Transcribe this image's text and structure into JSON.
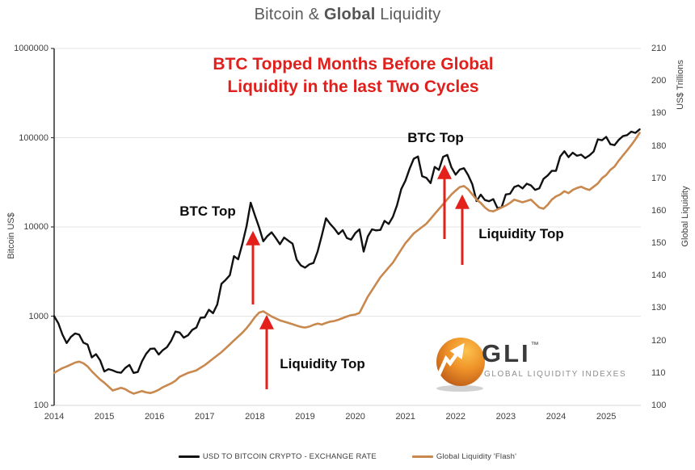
{
  "page_title": {
    "prefix": "Bitcoin & ",
    "bold": "Global",
    "suffix": " Liquidity"
  },
  "headline": {
    "line1": "BTC Topped Months Before Global",
    "line2": "Liquidity in the last Two Cycles",
    "color": "#e0201c"
  },
  "annotations": {
    "btc_top_1": "BTC Top",
    "liquidity_top_1": "Liquidity Top",
    "btc_top_2": "BTC Top",
    "liquidity_top_2": "Liquidity Top",
    "arrow_color": "#e3201b"
  },
  "logo": {
    "name": "GLI",
    "tm": "™",
    "subtitle": "GLOBAL LIQUIDITY INDEXES"
  },
  "legend": [
    {
      "label": "USD TO BITCOIN CRYPTO - EXCHANGE RATE",
      "color": "#111111"
    },
    {
      "label": "Global Liquidity 'Flash'",
      "color": "#c8884e"
    }
  ],
  "chart_data": {
    "type": "line",
    "title": "Bitcoin & Global Liquidity",
    "x_start_year": 2014,
    "x_step_months": 1,
    "x_ticks": [
      "2014",
      "2015",
      "2016",
      "2017",
      "2018",
      "2019",
      "2020",
      "2021",
      "2022",
      "2023",
      "2024",
      "2025"
    ],
    "grid": "horizontal-only",
    "legend_position": "bottom",
    "left_axis": {
      "label": "Bitcoin US$",
      "scale": "log",
      "range": [
        100,
        1000000
      ],
      "ticks": [
        "1000000",
        "100000",
        "10000",
        "1000",
        "100"
      ],
      "tick_values": [
        1000000,
        100000,
        10000,
        1000,
        100
      ]
    },
    "right_axis": {
      "label_top": "US$ Trillions",
      "label_mid": "Global Liquidity",
      "scale": "linear",
      "range": [
        100,
        210
      ],
      "ticks": [
        "210",
        "200",
        "190",
        "180",
        "170",
        "160",
        "150",
        "140",
        "130",
        "120",
        "110",
        "100"
      ],
      "tick_values": [
        210,
        200,
        190,
        180,
        170,
        160,
        150,
        140,
        130,
        120,
        110,
        100
      ]
    },
    "series": [
      {
        "name": "USD TO BITCOIN CRYPTO - EXCHANGE RATE",
        "axis": "left",
        "color": "#111111",
        "values": [
          1000,
          830,
          620,
          500,
          585,
          640,
          620,
          505,
          480,
          345,
          375,
          320,
          240,
          255,
          247,
          236,
          232,
          263,
          284,
          231,
          237,
          312,
          378,
          430,
          434,
          372,
          416,
          450,
          532,
          672,
          655,
          575,
          610,
          700,
          745,
          960,
          970,
          1180,
          1080,
          1350,
          2300,
          2550,
          2875,
          4700,
          4340,
          6450,
          10200,
          18700,
          13500,
          9900,
          6900,
          7900,
          8700,
          7500,
          6400,
          7600,
          7000,
          6500,
          4300,
          3700,
          3500,
          3800,
          3950,
          5300,
          8000,
          12500,
          10800,
          9600,
          8300,
          9200,
          7500,
          7200,
          8500,
          9400,
          5300,
          7800,
          9400,
          9150,
          9250,
          11700,
          10800,
          13000,
          17500,
          26500,
          33000,
          45000,
          58000,
          61500,
          37000,
          35500,
          31000,
          47000,
          43500,
          61000,
          64000,
          46500,
          38500,
          44000,
          45500,
          38000,
          30000,
          19500,
          23000,
          20000,
          19400,
          20500,
          16200,
          16600,
          23100,
          23500,
          28000,
          29200,
          27000,
          30500,
          29200,
          26000,
          27000,
          34500,
          37700,
          42500,
          42600,
          61500,
          70500,
          60500,
          67800,
          62700,
          64600,
          59000,
          63300,
          70000,
          96000,
          93500,
          102000,
          84500,
          82500,
          94500,
          104000,
          107000,
          117000,
          113000,
          124000
        ]
      },
      {
        "name": "Global Liquidity 'Flash'",
        "axis": "right",
        "color": "#c8884e",
        "values": [
          110,
          110.8,
          111.5,
          112,
          112.6,
          113.2,
          113.5,
          113,
          112,
          110.5,
          109.2,
          108,
          107,
          105.8,
          104.6,
          105,
          105.4,
          105,
          104.2,
          103.6,
          104,
          104.4,
          104,
          103.8,
          104.2,
          104.8,
          105.6,
          106.2,
          106.8,
          107.6,
          108.8,
          109.4,
          110,
          110.4,
          110.8,
          111.6,
          112.4,
          113.4,
          114.4,
          115.4,
          116.4,
          117.6,
          118.8,
          120,
          121.2,
          122.4,
          123.8,
          125.4,
          127.2,
          128.6,
          129,
          128.2,
          127.4,
          126.8,
          126.2,
          125.8,
          125.4,
          125,
          124.6,
          124.2,
          124,
          124.3,
          124.8,
          125.2,
          124.9,
          125.4,
          125.8,
          126,
          126.4,
          126.9,
          127.4,
          127.8,
          128,
          128.5,
          131,
          133.5,
          135.5,
          137.5,
          139.5,
          141,
          142.5,
          144,
          146,
          148,
          150,
          151.5,
          153,
          154,
          155,
          156,
          157.5,
          159,
          160.5,
          162,
          163.5,
          165,
          166.2,
          167.3,
          167.6,
          166.6,
          165,
          163.4,
          162.4,
          161,
          160,
          159.8,
          160.4,
          161,
          161.6,
          162.4,
          163.4,
          163,
          162.6,
          163,
          163.4,
          162.2,
          161,
          160.6,
          161.8,
          163.4,
          164.4,
          165,
          166,
          165.4,
          166.4,
          167,
          167.4,
          166.8,
          166.4,
          167.4,
          168.4,
          170,
          171,
          172.6,
          173.6,
          175.4,
          177,
          178.6,
          180.2,
          182,
          184
        ]
      }
    ]
  }
}
